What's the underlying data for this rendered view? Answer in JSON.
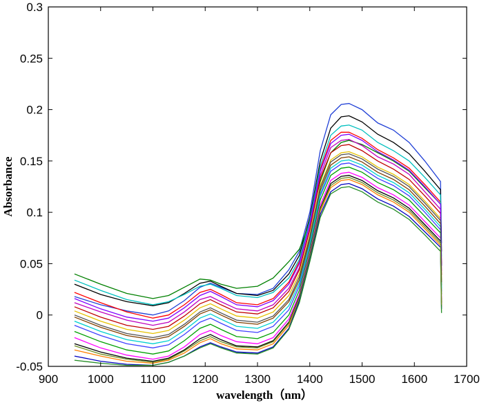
{
  "chart_data": {
    "type": "line",
    "title": "",
    "xlabel": "wavelength（nm）",
    "ylabel": "Absorbance",
    "xlim": [
      900,
      1700
    ],
    "ylim": [
      -0.05,
      0.3
    ],
    "xticks": [
      "900",
      "1000",
      "1100",
      "1200",
      "1300",
      "1400",
      "1500",
      "1600",
      "1700"
    ],
    "yticks": [
      "-0.05",
      "0",
      "0.05",
      "0.1",
      "0.15",
      "0.2",
      "0.25",
      "0.3"
    ],
    "grid": false,
    "legend": "none",
    "x": [
      950,
      1000,
      1050,
      1100,
      1130,
      1160,
      1190,
      1210,
      1230,
      1260,
      1300,
      1330,
      1360,
      1380,
      1400,
      1420,
      1440,
      1460,
      1475,
      1500,
      1530,
      1560,
      1590,
      1620,
      1650
    ],
    "series": [
      {
        "color": "#1f3fd6",
        "values": [
          0.018,
          0.01,
          0.004,
          0.0,
          0.004,
          0.014,
          0.027,
          0.031,
          0.027,
          0.021,
          0.02,
          0.026,
          0.044,
          0.062,
          0.1,
          0.16,
          0.195,
          0.205,
          0.206,
          0.2,
          0.187,
          0.18,
          0.168,
          0.15,
          0.13
        ]
      },
      {
        "color": "#000000",
        "values": [
          0.03,
          0.02,
          0.013,
          0.009,
          0.012,
          0.021,
          0.031,
          0.033,
          0.028,
          0.021,
          0.019,
          0.024,
          0.04,
          0.058,
          0.095,
          0.15,
          0.182,
          0.193,
          0.194,
          0.188,
          0.176,
          0.168,
          0.157,
          0.14,
          0.122
        ]
      },
      {
        "color": "#008000",
        "values": [
          0.04,
          0.03,
          0.021,
          0.016,
          0.019,
          0.027,
          0.035,
          0.034,
          0.03,
          0.026,
          0.028,
          0.036,
          0.052,
          0.064,
          0.09,
          0.13,
          0.158,
          0.168,
          0.17,
          0.166,
          0.158,
          0.15,
          0.14,
          0.124,
          0.108
        ]
      },
      {
        "color": "#ff0000",
        "values": [
          0.022,
          0.012,
          0.003,
          -0.003,
          0.0,
          0.01,
          0.022,
          0.025,
          0.02,
          0.012,
          0.01,
          0.016,
          0.032,
          0.052,
          0.09,
          0.142,
          0.17,
          0.178,
          0.178,
          0.172,
          0.161,
          0.153,
          0.143,
          0.127,
          0.11
        ]
      },
      {
        "color": "#00bfbf",
        "values": [
          0.034,
          0.024,
          0.015,
          0.01,
          0.013,
          0.02,
          0.028,
          0.03,
          0.026,
          0.019,
          0.017,
          0.022,
          0.036,
          0.054,
          0.092,
          0.145,
          0.175,
          0.184,
          0.185,
          0.18,
          0.168,
          0.16,
          0.15,
          0.134,
          0.117
        ]
      },
      {
        "color": "#bf00bf",
        "values": [
          0.012,
          0.003,
          -0.005,
          -0.01,
          -0.007,
          0.003,
          0.015,
          0.018,
          0.013,
          0.006,
          0.004,
          0.01,
          0.026,
          0.046,
          0.085,
          0.136,
          0.163,
          0.17,
          0.171,
          0.165,
          0.154,
          0.147,
          0.137,
          0.12,
          0.103
        ]
      },
      {
        "color": "#e5c100",
        "values": [
          0.004,
          -0.006,
          -0.014,
          -0.018,
          -0.015,
          -0.005,
          0.007,
          0.011,
          0.006,
          -0.001,
          -0.003,
          0.003,
          0.019,
          0.04,
          0.078,
          0.126,
          0.151,
          0.158,
          0.159,
          0.154,
          0.144,
          0.137,
          0.127,
          0.111,
          0.094
        ]
      },
      {
        "color": "#7f3f00",
        "values": [
          -0.002,
          -0.012,
          -0.02,
          -0.024,
          -0.021,
          -0.011,
          0.001,
          0.005,
          0.0,
          -0.007,
          -0.009,
          -0.003,
          0.013,
          0.034,
          0.073,
          0.121,
          0.146,
          0.153,
          0.154,
          0.149,
          0.139,
          0.132,
          0.122,
          0.106,
          0.089
        ]
      },
      {
        "color": "#3f3fff",
        "values": [
          -0.01,
          -0.02,
          -0.028,
          -0.032,
          -0.029,
          -0.019,
          -0.007,
          -0.003,
          -0.008,
          -0.015,
          -0.017,
          -0.011,
          0.005,
          0.028,
          0.068,
          0.116,
          0.14,
          0.147,
          0.148,
          0.143,
          0.133,
          0.126,
          0.116,
          0.1,
          0.083
        ]
      },
      {
        "color": "#00a000",
        "values": [
          -0.016,
          -0.026,
          -0.034,
          -0.038,
          -0.035,
          -0.025,
          -0.013,
          -0.009,
          -0.014,
          -0.021,
          -0.023,
          -0.017,
          0.0,
          0.024,
          0.064,
          0.112,
          0.136,
          0.143,
          0.144,
          0.139,
          0.129,
          0.122,
          0.112,
          0.096,
          0.08
        ]
      },
      {
        "color": "#ff00ff",
        "values": [
          -0.022,
          -0.032,
          -0.039,
          -0.043,
          -0.04,
          -0.031,
          -0.019,
          -0.015,
          -0.02,
          -0.026,
          -0.028,
          -0.022,
          -0.004,
          0.02,
          0.06,
          0.107,
          0.131,
          0.138,
          0.139,
          0.134,
          0.124,
          0.117,
          0.107,
          0.091,
          0.075
        ]
      },
      {
        "color": "#000000",
        "values": [
          -0.028,
          -0.036,
          -0.042,
          -0.045,
          -0.042,
          -0.034,
          -0.023,
          -0.019,
          -0.024,
          -0.03,
          -0.031,
          -0.025,
          -0.007,
          0.018,
          0.058,
          0.104,
          0.128,
          0.135,
          0.136,
          0.131,
          0.121,
          0.114,
          0.104,
          0.088,
          0.072
        ]
      },
      {
        "color": "#ff7f00",
        "values": [
          -0.034,
          -0.04,
          -0.045,
          -0.047,
          -0.044,
          -0.037,
          -0.027,
          -0.023,
          -0.028,
          -0.033,
          -0.034,
          -0.028,
          -0.01,
          0.016,
          0.056,
          0.101,
          0.124,
          0.131,
          0.132,
          0.127,
          0.117,
          0.11,
          0.1,
          0.084,
          0.068
        ]
      },
      {
        "color": "#0000c0",
        "values": [
          -0.04,
          -0.045,
          -0.048,
          -0.049,
          -0.046,
          -0.04,
          -0.031,
          -0.027,
          -0.031,
          -0.036,
          -0.037,
          -0.031,
          -0.013,
          0.014,
          0.054,
          0.098,
          0.12,
          0.127,
          0.128,
          0.123,
          0.113,
          0.106,
          0.096,
          0.081,
          0.066
        ]
      },
      {
        "color": "#228b22",
        "values": [
          -0.044,
          -0.047,
          -0.049,
          -0.049,
          -0.046,
          -0.04,
          -0.032,
          -0.028,
          -0.032,
          -0.037,
          -0.038,
          -0.032,
          -0.014,
          0.012,
          0.052,
          0.095,
          0.118,
          0.124,
          0.125,
          0.12,
          0.11,
          0.103,
          0.093,
          0.078,
          0.062
        ]
      },
      {
        "color": "#c00000",
        "values": [
          0.008,
          -0.002,
          -0.01,
          -0.014,
          -0.011,
          -0.001,
          0.011,
          0.015,
          0.01,
          0.003,
          0.001,
          0.007,
          0.023,
          0.044,
          0.083,
          0.133,
          0.158,
          0.165,
          0.166,
          0.16,
          0.15,
          0.142,
          0.132,
          0.116,
          0.099
        ]
      },
      {
        "color": "#00d0d0",
        "values": [
          -0.006,
          -0.016,
          -0.024,
          -0.028,
          -0.025,
          -0.015,
          -0.003,
          0.001,
          -0.004,
          -0.011,
          -0.013,
          -0.007,
          0.009,
          0.031,
          0.07,
          0.118,
          0.143,
          0.15,
          0.151,
          0.146,
          0.136,
          0.129,
          0.119,
          0.103,
          0.086
        ]
      },
      {
        "color": "#8000ff",
        "values": [
          0.016,
          0.006,
          -0.002,
          -0.006,
          -0.003,
          0.007,
          0.019,
          0.023,
          0.018,
          0.01,
          0.008,
          0.014,
          0.03,
          0.05,
          0.089,
          0.14,
          0.167,
          0.175,
          0.176,
          0.17,
          0.159,
          0.151,
          0.141,
          0.125,
          0.108
        ]
      },
      {
        "color": "#505050",
        "values": [
          0.0,
          -0.01,
          -0.018,
          -0.022,
          -0.019,
          -0.009,
          0.003,
          0.007,
          0.002,
          -0.005,
          -0.007,
          -0.001,
          0.015,
          0.037,
          0.076,
          0.124,
          0.149,
          0.156,
          0.157,
          0.152,
          0.142,
          0.135,
          0.125,
          0.109,
          0.092
        ]
      },
      {
        "color": "#6b8e23",
        "values": [
          -0.03,
          -0.038,
          -0.043,
          -0.046,
          -0.043,
          -0.035,
          -0.025,
          -0.021,
          -0.026,
          -0.031,
          -0.032,
          -0.026,
          -0.008,
          0.017,
          0.057,
          0.103,
          0.126,
          0.133,
          0.134,
          0.129,
          0.119,
          0.112,
          0.102,
          0.086,
          0.07
        ]
      }
    ]
  }
}
